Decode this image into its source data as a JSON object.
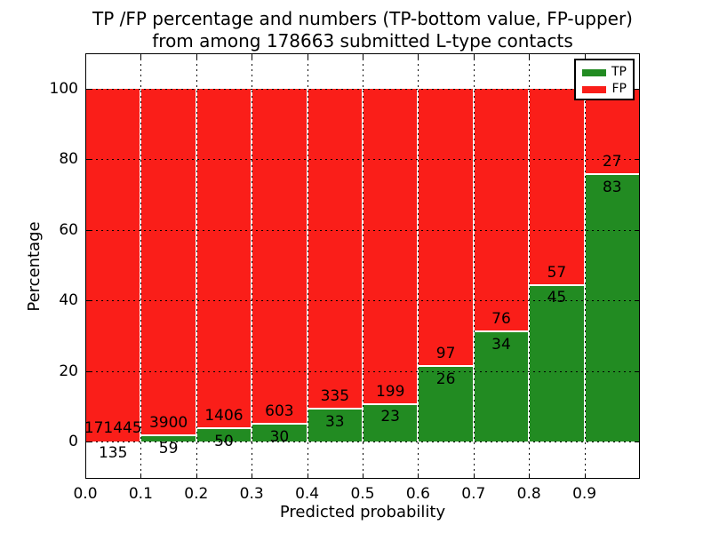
{
  "title": {
    "line1": "TP /FP percentage and numbers (TP-bottom value, FP-upper)",
    "line2": "from among 178663 submitted L-type contacts"
  },
  "chart_data": {
    "type": "bar",
    "stacked": true,
    "normalized": "percent",
    "title": "TP /FP percentage and numbers (TP-bottom value, FP-upper) from among 178663 submitted L-type contacts",
    "total_contacts": 178663,
    "xlabel": "Predicted probability",
    "ylabel": "Percentage",
    "bin_starts": [
      0.0,
      0.1,
      0.2,
      0.3,
      0.4,
      0.5,
      0.6,
      0.7,
      0.8,
      0.9
    ],
    "bin_width": 0.1,
    "x_tick_labels": [
      "0.0",
      "0.1",
      "0.2",
      "0.3",
      "0.4",
      "0.5",
      "0.6",
      "0.7",
      "0.8",
      "0.9"
    ],
    "y_ticks": [
      0,
      20,
      40,
      60,
      80,
      100
    ],
    "y_tick_labels": [
      "0",
      "20",
      "40",
      "60",
      "80",
      "100"
    ],
    "xlim": [
      0.0,
      1.0
    ],
    "ylim": [
      -10.7,
      110.1
    ],
    "grid": true,
    "grid_style": "dotted",
    "legend": {
      "position": "upper right",
      "entries": [
        {
          "label": "TP",
          "color": "#228b22"
        },
        {
          "label": "FP",
          "color": "#fa1e19"
        }
      ]
    },
    "series": [
      {
        "name": "TP",
        "values": [
          135,
          59,
          50,
          30,
          33,
          23,
          26,
          34,
          45,
          83
        ]
      },
      {
        "name": "FP",
        "values": [
          171445,
          3900,
          1406,
          603,
          335,
          199,
          97,
          76,
          57,
          27
        ]
      }
    ]
  },
  "colors": {
    "tp": "#228b22",
    "fp": "#fa1e19",
    "grid": "#000000",
    "background": "#ffffff",
    "text": "#000000"
  }
}
